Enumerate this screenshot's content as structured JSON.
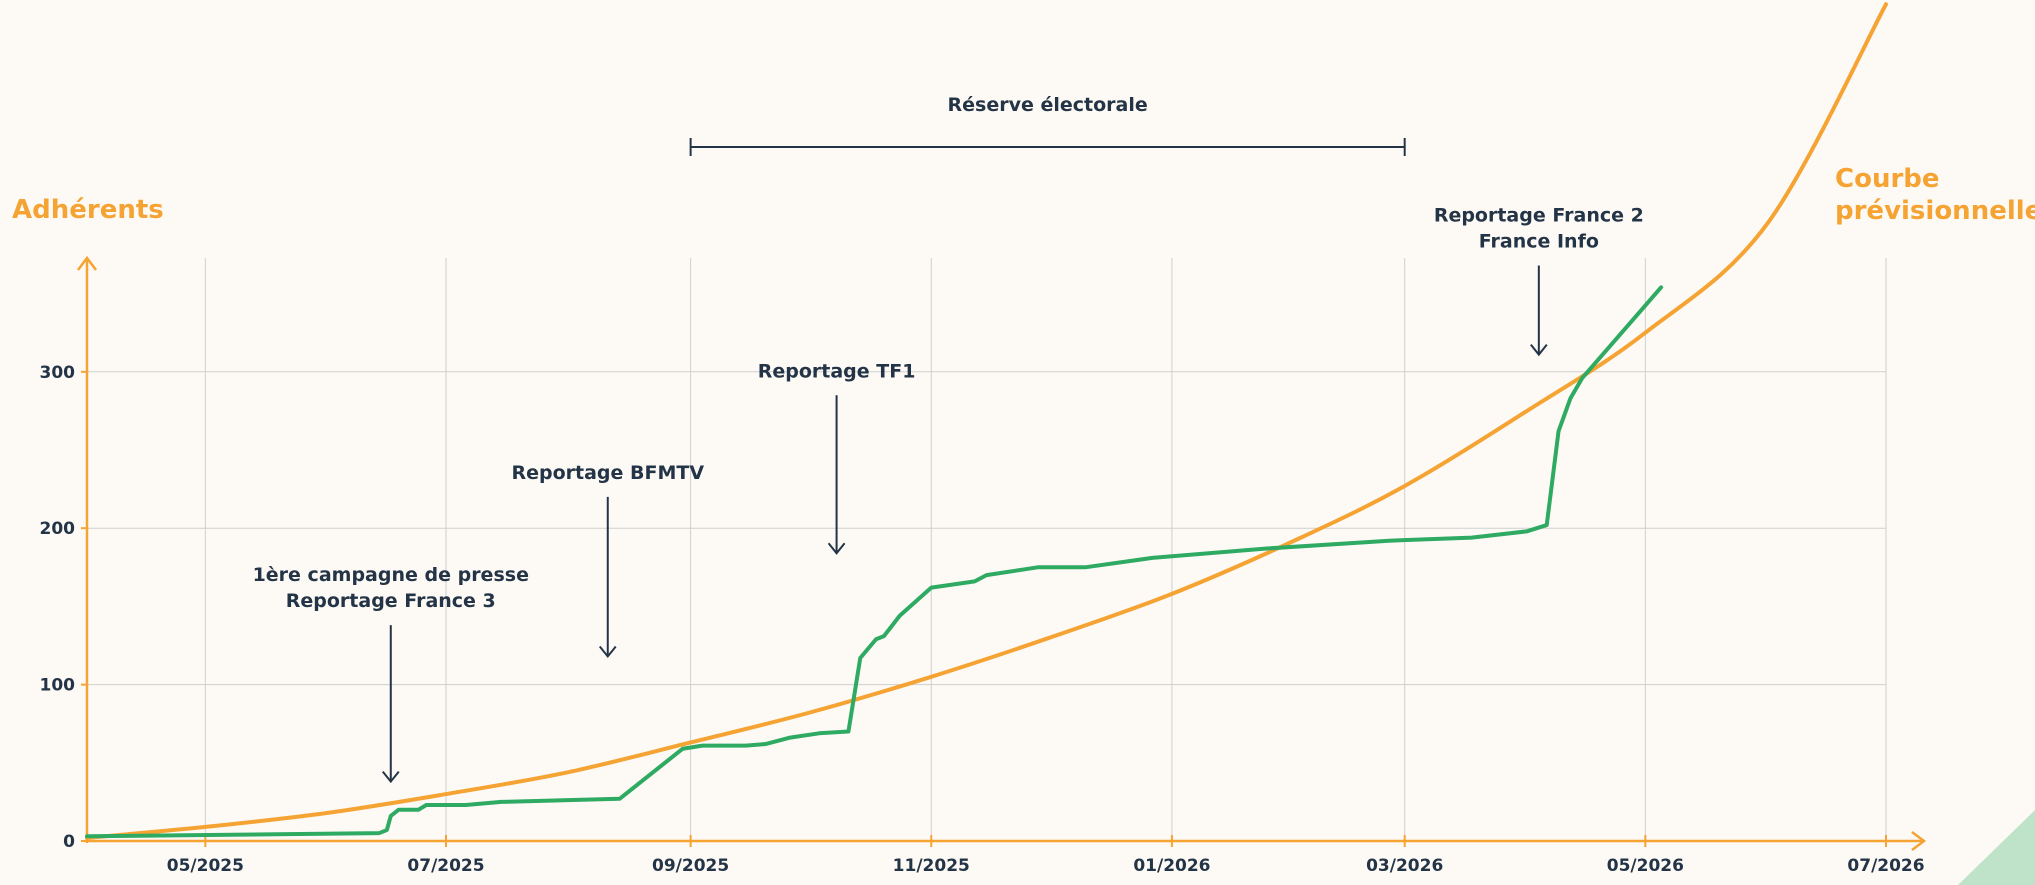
{
  "chart_data": {
    "type": "line",
    "ylabel": "Adhérents",
    "ylim": [
      0,
      380
    ],
    "yticks": [
      0,
      100,
      200,
      300
    ],
    "xlim": [
      "2025-04-01",
      "2026-07-01"
    ],
    "x_ticks": [
      {
        "date": "2025-05-01",
        "label": "05/2025"
      },
      {
        "date": "2025-07-01",
        "label": "07/2025"
      },
      {
        "date": "2025-09-01",
        "label": "09/2025"
      },
      {
        "date": "2025-11-01",
        "label": "11/2025"
      },
      {
        "date": "2026-01-01",
        "label": "01/2026"
      },
      {
        "date": "2026-03-01",
        "label": "03/2026"
      },
      {
        "date": "2026-05-01",
        "label": "05/2026"
      },
      {
        "date": "2026-07-01",
        "label": "07/2026"
      }
    ],
    "grid": true,
    "series": [
      {
        "name": "",
        "color": "#2eaa62",
        "points": [
          [
            "2025-04-01",
            3
          ],
          [
            "2025-06-14",
            5
          ],
          [
            "2025-06-16",
            7
          ],
          [
            "2025-06-17",
            16
          ],
          [
            "2025-06-19",
            20
          ],
          [
            "2025-06-24",
            20
          ],
          [
            "2025-06-26",
            23
          ],
          [
            "2025-07-06",
            23
          ],
          [
            "2025-07-15",
            25
          ],
          [
            "2025-08-14",
            27
          ],
          [
            "2025-08-30",
            59
          ],
          [
            "2025-09-04",
            61
          ],
          [
            "2025-09-15",
            61
          ],
          [
            "2025-09-20",
            62
          ],
          [
            "2025-09-26",
            66
          ],
          [
            "2025-10-04",
            69
          ],
          [
            "2025-10-11",
            70
          ],
          [
            "2025-10-14",
            117
          ],
          [
            "2025-10-18",
            129
          ],
          [
            "2025-10-20",
            131
          ],
          [
            "2025-10-24",
            144
          ],
          [
            "2025-11-01",
            162
          ],
          [
            "2025-11-12",
            166
          ],
          [
            "2025-11-15",
            170
          ],
          [
            "2025-11-28",
            175
          ],
          [
            "2025-12-10",
            175
          ],
          [
            "2025-12-27",
            181
          ],
          [
            "2026-01-25",
            187
          ],
          [
            "2026-02-25",
            192
          ],
          [
            "2026-03-18",
            194
          ],
          [
            "2026-04-01",
            198
          ],
          [
            "2026-04-06",
            202
          ],
          [
            "2026-04-09",
            262
          ],
          [
            "2026-04-12",
            283
          ],
          [
            "2026-04-15",
            296
          ],
          [
            "2026-05-05",
            354
          ]
        ]
      }
    ],
    "forecast": {
      "label": "Courbe prévisionnelle",
      "color": "#f5a333",
      "points": [
        [
          "2025-04-01",
          2
        ],
        [
          "2025-05-01",
          9
        ],
        [
          "2025-06-01",
          18
        ],
        [
          "2025-07-01",
          30
        ],
        [
          "2025-08-01",
          44
        ],
        [
          "2025-09-01",
          63
        ],
        [
          "2025-10-01",
          82
        ],
        [
          "2025-11-01",
          105
        ],
        [
          "2025-12-01",
          130
        ],
        [
          "2026-01-01",
          158
        ],
        [
          "2026-02-01",
          192
        ],
        [
          "2026-03-01",
          227
        ],
        [
          "2026-04-01",
          275
        ],
        [
          "2026-05-01",
          325
        ],
        [
          "2026-06-01",
          395
        ],
        [
          "2026-07-01",
          535
        ]
      ]
    },
    "annotations": [
      {
        "lines": [
          "1ère campagne de presse",
          "Reportage France 3"
        ],
        "date": "2025-06-17",
        "y_from": 138,
        "y_to": 38
      },
      {
        "lines": [
          "Reportage BFMTV"
        ],
        "date": "2025-08-11",
        "y_from": 220,
        "y_to": 118
      },
      {
        "lines": [
          "Reportage TF1"
        ],
        "date": "2025-10-08",
        "y_from": 285,
        "y_to": 184
      },
      {
        "lines": [
          "Reportage France 2",
          "France Info"
        ],
        "date": "2026-04-04",
        "y_from": 368,
        "y_to": 311
      }
    ],
    "period": {
      "label": "Réserve électorale",
      "start": "2025-09-01",
      "end": "2026-03-01"
    },
    "axis_color": "#f5a333",
    "grid_color": "#cfcfcf",
    "text_color": "#243447"
  }
}
